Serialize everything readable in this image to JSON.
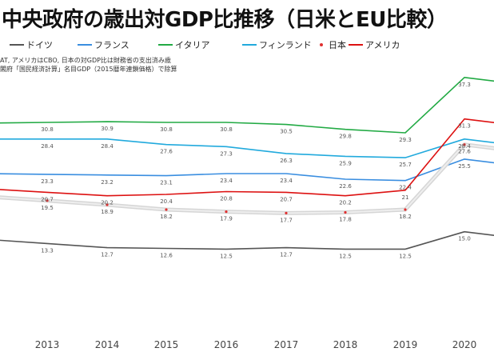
{
  "title": "中央政府の歳出対GDP比推移（日米とEU比較）",
  "notes": [
    "AT, アメリカはCBO, 日本の対GDP比は財務省の支出済み歳",
    "閣府「国民経済計算」名目GDP（2015暦年連鎖価格）で除算"
  ],
  "legend": [
    {
      "name": "ドイツ",
      "color": "#555555",
      "marker": "line"
    },
    {
      "name": "フランス",
      "color": "#3a8ee0",
      "marker": "line"
    },
    {
      "name": "イタリア",
      "color": "#22aa44",
      "marker": "line"
    },
    {
      "name": "フィンランド",
      "color": "#22aadd",
      "marker": "line"
    },
    {
      "name": "日本",
      "color": "#e03030",
      "marker": "dot"
    },
    {
      "name": "アメリカ",
      "color": "#dd1111",
      "marker": "line"
    }
  ],
  "chart_data": {
    "type": "line",
    "x": [
      "2013",
      "2014",
      "2015",
      "2016",
      "2017",
      "2018",
      "2019",
      "2020"
    ],
    "ylim": [
      8,
      40
    ],
    "grid": false,
    "legend_position": "top",
    "series": [
      {
        "name": "イタリア",
        "color": "#22aa44",
        "values": [
          30.8,
          30.9,
          30.8,
          30.8,
          30.5,
          29.8,
          29.3,
          37.3
        ],
        "labels": [
          "30.8",
          "30.9",
          "30.8",
          "30.8",
          "30.5",
          "29.8",
          "29.3",
          "37.3"
        ]
      },
      {
        "name": "フィンランド",
        "color": "#22aadd",
        "values": [
          28.4,
          28.4,
          27.6,
          27.3,
          26.3,
          25.9,
          25.7,
          28.4
        ],
        "labels": [
          "28.4",
          "28.4",
          "27.6",
          "27.3",
          "26.3",
          "25.9",
          "25.7",
          "28.4"
        ]
      },
      {
        "name": "フランス",
        "color": "#3a8ee0",
        "values": [
          23.3,
          23.2,
          23.1,
          23.4,
          23.4,
          22.6,
          22.4,
          25.5
        ],
        "labels": [
          "23.3",
          "23.2",
          "23.1",
          "23.4",
          "23.4",
          "22.6",
          "22.4",
          "25.5"
        ]
      },
      {
        "name": "アメリカ",
        "color": "#dd1111",
        "values": [
          20.7,
          20.2,
          20.4,
          20.8,
          20.7,
          20.2,
          21.0,
          31.3
        ],
        "labels": [
          "20.7",
          "20.2",
          "20.4",
          "20.8",
          "20.7",
          "20.2",
          "21",
          "31.3"
        ]
      },
      {
        "name": "日本",
        "color": "#e03030",
        "values": [
          19.5,
          18.9,
          18.2,
          17.9,
          17.7,
          17.8,
          18.2,
          27.6
        ],
        "labels": [
          "19.5",
          "18.9",
          "18.2",
          "17.9",
          "17.7",
          "17.8",
          "18.2",
          "27.6"
        ]
      },
      {
        "name": "ドイツ",
        "color": "#555555",
        "values": [
          13.3,
          12.7,
          12.6,
          12.5,
          12.7,
          12.5,
          12.5,
          15.0
        ],
        "labels": [
          "13.3",
          "12.7",
          "12.6",
          "12.5",
          "12.7",
          "12.5",
          "12.5",
          "15.0"
        ]
      }
    ]
  }
}
